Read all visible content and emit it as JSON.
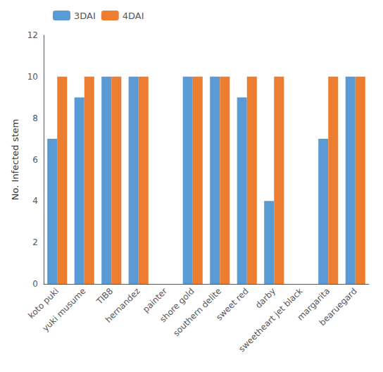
{
  "chart_data": {
    "type": "bar",
    "categories": [
      "koto puki",
      "yuki musume",
      "TIB8",
      "hernandez",
      "painter",
      "shore gold",
      "southern delite",
      "sweet red",
      "darby",
      "sweetheart jet black",
      "margarita",
      "bearuegard"
    ],
    "series": [
      {
        "name": "3DAI",
        "color": "#5B9BD5",
        "values": [
          7,
          9,
          10,
          10,
          0,
          10,
          10,
          9,
          4,
          0,
          7,
          10
        ]
      },
      {
        "name": "4DAI",
        "color": "#ED7D31",
        "values": [
          10,
          10,
          10,
          10,
          0,
          10,
          10,
          10,
          10,
          0,
          10,
          10
        ]
      }
    ],
    "ylabel": "No. Infected stem",
    "ylim": [
      0,
      12
    ],
    "yticks": [
      0,
      2,
      4,
      6,
      8,
      10,
      12
    ],
    "grid": false,
    "legend": "upper left"
  }
}
